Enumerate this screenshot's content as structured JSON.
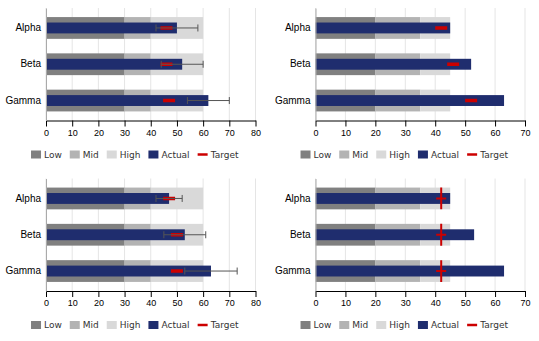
{
  "chart_data": [
    {
      "type": "bullet",
      "orientation": "horizontal",
      "stacked": true,
      "grid": true,
      "legend": "bottom",
      "categories": [
        "Gamma",
        "Beta",
        "Alpha"
      ],
      "xlim": [
        0,
        80
      ],
      "xticks": [
        0,
        10,
        20,
        30,
        40,
        50,
        60,
        70,
        80
      ],
      "series": [
        {
          "name": "Low",
          "type": "range",
          "color": "#808080",
          "values": [
            30,
            30,
            30
          ]
        },
        {
          "name": "Mid",
          "type": "range",
          "color": "#b3b3b3",
          "values": [
            10,
            10,
            10
          ]
        },
        {
          "name": "High",
          "type": "range",
          "color": "#d9d9d9",
          "values": [
            20,
            20,
            20
          ]
        },
        {
          "name": "Actual",
          "type": "bar",
          "color": "#1f2d6e",
          "values": [
            62,
            52,
            50
          ],
          "errors": [
            8,
            8,
            8
          ]
        },
        {
          "name": "Target",
          "type": "marker",
          "marker": "dash",
          "color": "#cc0000",
          "values": [
            47,
            46,
            46
          ]
        }
      ]
    },
    {
      "type": "bullet",
      "orientation": "horizontal",
      "stacked": true,
      "grid": true,
      "legend": "bottom",
      "categories": [
        "Gamma",
        "Beta",
        "Alpha"
      ],
      "xlim": [
        0,
        70
      ],
      "xticks": [
        0,
        10,
        20,
        30,
        40,
        50,
        60,
        70
      ],
      "series": [
        {
          "name": "Low",
          "type": "range",
          "color": "#808080",
          "values": [
            20,
            20,
            20
          ]
        },
        {
          "name": "Mid",
          "type": "range",
          "color": "#b3b3b3",
          "values": [
            15,
            15,
            15
          ]
        },
        {
          "name": "High",
          "type": "range",
          "color": "#d9d9d9",
          "values": [
            10,
            10,
            10
          ]
        },
        {
          "name": "Actual",
          "type": "bar",
          "color": "#1f2d6e",
          "values": [
            63,
            52,
            45
          ]
        },
        {
          "name": "Target",
          "type": "marker",
          "marker": "dash",
          "color": "#cc0000",
          "values": [
            52,
            46,
            42
          ]
        }
      ]
    },
    {
      "type": "bullet",
      "orientation": "horizontal",
      "stacked": true,
      "grid": true,
      "legend": "bottom",
      "categories": [
        "Gamma",
        "Beta",
        "Alpha"
      ],
      "xlim": [
        0,
        80
      ],
      "xticks": [
        0,
        10,
        20,
        30,
        40,
        50,
        60,
        70,
        80
      ],
      "series": [
        {
          "name": "Low",
          "type": "range",
          "color": "#808080",
          "values": [
            30,
            30,
            30
          ]
        },
        {
          "name": "Mid",
          "type": "range",
          "color": "#b3b3b3",
          "values": [
            10,
            10,
            10
          ]
        },
        {
          "name": "High",
          "type": "range",
          "color": "#d9d9d9",
          "values": [
            20,
            20,
            20
          ]
        },
        {
          "name": "Actual",
          "type": "bar",
          "color": "#1f2d6e",
          "values": [
            63,
            53,
            47
          ],
          "errors": [
            10,
            8,
            5
          ]
        },
        {
          "name": "Target",
          "type": "marker",
          "marker": "dash",
          "color": "#cc0000",
          "values": [
            50,
            50,
            47
          ]
        }
      ]
    },
    {
      "type": "bullet",
      "orientation": "horizontal",
      "stacked": true,
      "grid": true,
      "legend": "bottom",
      "categories": [
        "Gamma",
        "Beta",
        "Alpha"
      ],
      "xlim": [
        0,
        70
      ],
      "xticks": [
        0,
        10,
        20,
        30,
        40,
        50,
        60,
        70
      ],
      "series": [
        {
          "name": "Low",
          "type": "range",
          "color": "#808080",
          "values": [
            20,
            20,
            20
          ]
        },
        {
          "name": "Mid",
          "type": "range",
          "color": "#b3b3b3",
          "values": [
            15,
            15,
            15
          ]
        },
        {
          "name": "High",
          "type": "range",
          "color": "#d9d9d9",
          "values": [
            10,
            10,
            10
          ]
        },
        {
          "name": "Actual",
          "type": "bar",
          "color": "#1f2d6e",
          "values": [
            63,
            53,
            45
          ]
        },
        {
          "name": "Target",
          "type": "marker",
          "marker": "cross",
          "color": "#cc0000",
          "values": [
            42,
            42,
            42
          ]
        }
      ]
    }
  ]
}
